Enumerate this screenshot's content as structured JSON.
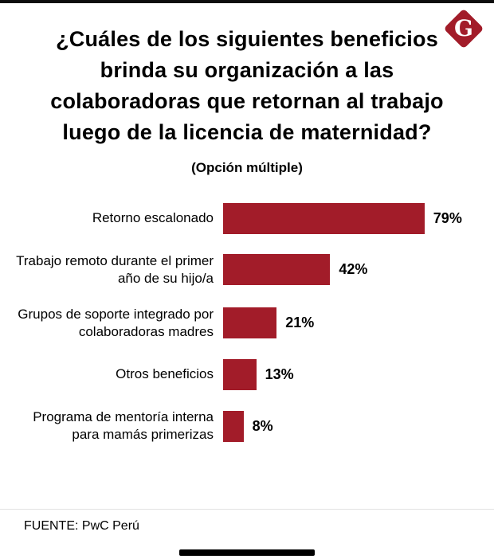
{
  "header": {
    "logo_letter": "G"
  },
  "title": "¿Cuáles de los siguientes beneficios brinda su organización a las colaboradoras que retornan al trabajo luego de la licencia de maternidad?",
  "subtitle": "(Opción múltiple)",
  "footer": {
    "source": "FUENTE: PwC Perú"
  },
  "colors": {
    "bar": "#A21C29",
    "logo": "#A21C29"
  },
  "chart_data": {
    "type": "bar",
    "orientation": "horizontal",
    "title": "¿Cuáles de los siguientes beneficios brinda su organización a las colaboradoras que retornan al trabajo luego de la licencia de maternidad?",
    "subtitle": "(Opción múltiple)",
    "categories": [
      "Retorno escalonado",
      "Trabajo remoto durante el primer año de su hijo/a",
      "Grupos de soporte integrado por colaboradoras madres",
      "Otros beneficios",
      "Programa de mentoría interna para mamás primerizas"
    ],
    "values": [
      79,
      42,
      21,
      13,
      8
    ],
    "value_labels": [
      "79%",
      "42%",
      "21%",
      "13%",
      "8%"
    ],
    "xlim": [
      0,
      100
    ],
    "grid": false,
    "legend": false,
    "source": "FUENTE: PwC Perú"
  }
}
